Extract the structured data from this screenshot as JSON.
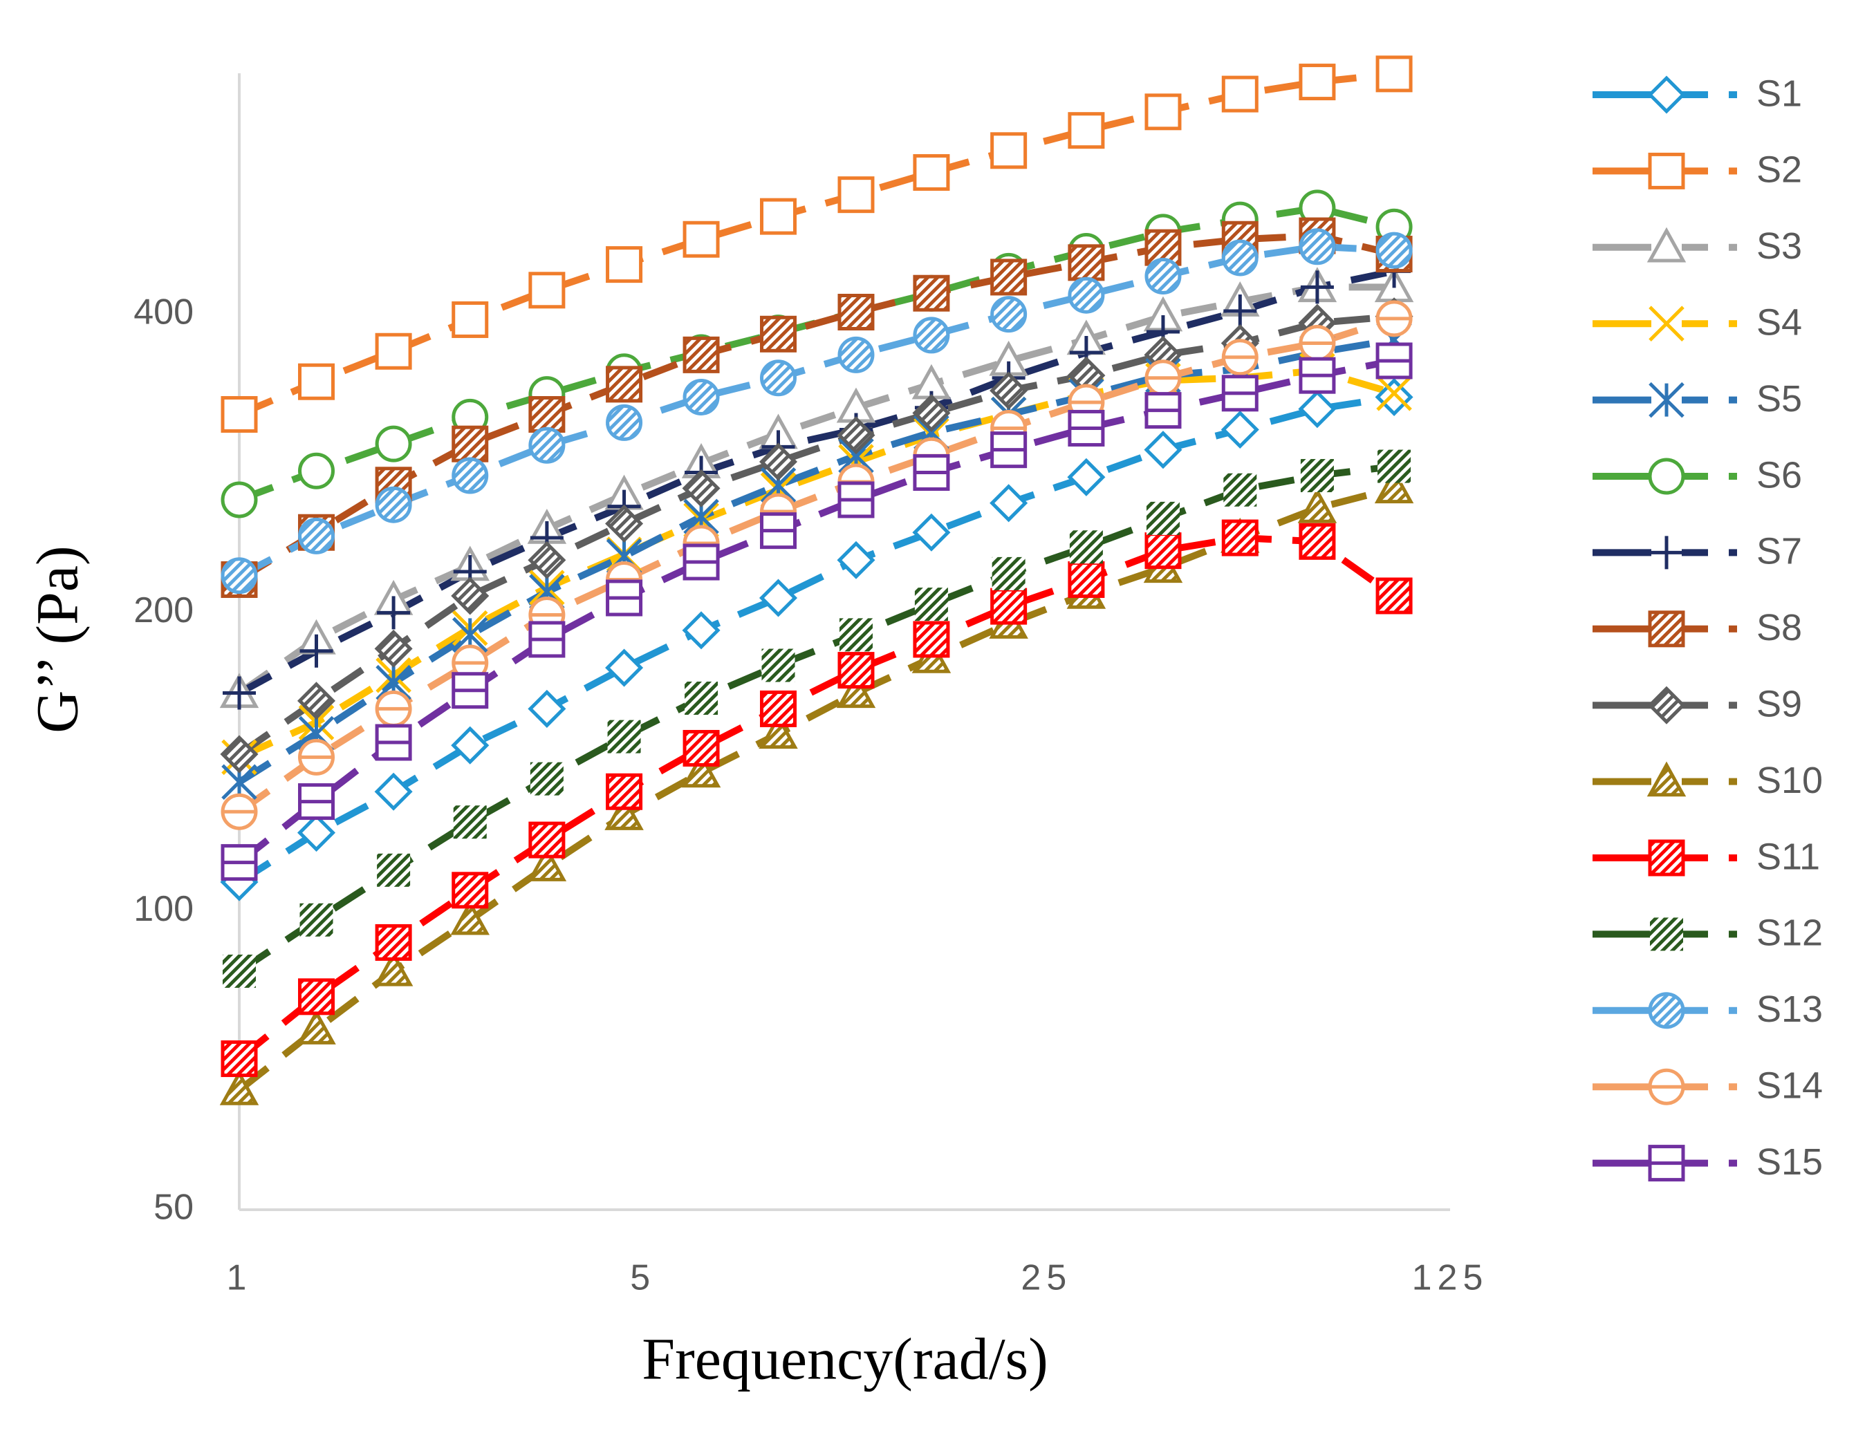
{
  "chart_data": {
    "type": "line",
    "x_label": "Frequency(rad/s)",
    "y_label": "G’’ (Pa)",
    "x_scale": "log",
    "y_scale": "log",
    "xlim": [
      1,
      125
    ],
    "ylim": [
      50,
      700
    ],
    "xticks": [
      1,
      5,
      25,
      125
    ],
    "yticks": [
      50,
      100,
      200,
      400
    ],
    "grid": false,
    "legend": "right",
    "x": [
      1,
      1.36,
      1.85,
      2.51,
      3.41,
      4.64,
      6.31,
      8.58,
      11.7,
      15.8,
      21.5,
      29.3,
      39.8,
      54.1,
      73.6,
      100
    ],
    "series": [
      {
        "name": "S1",
        "color": "#2196d3",
        "marker": "diamond",
        "values": [
          107,
          120,
          132,
          147,
          160,
          176,
          192,
          207,
          226,
          241,
          258,
          274,
          292,
          306,
          321,
          330
        ]
      },
      {
        "name": "S2",
        "color": "#f07d2b",
        "marker": "square",
        "values": [
          317,
          342,
          367,
          395,
          423,
          449,
          476,
          502,
          528,
          556,
          585,
          613,
          640,
          667,
          686,
          699
        ]
      },
      {
        "name": "S3",
        "color": "#a5a5a5",
        "marker": "triangle",
        "values": [
          166,
          188,
          206,
          223,
          243,
          263,
          283,
          303,
          322,
          340,
          359,
          377,
          398,
          412,
          426,
          426
        ]
      },
      {
        "name": "S4",
        "color": "#ffc000",
        "marker": "x",
        "values": [
          143,
          155,
          173,
          193,
          212,
          229,
          248,
          266,
          284,
          302,
          317,
          332,
          343,
          345,
          351,
          333
        ]
      },
      {
        "name": "S5",
        "color": "#2e75b6",
        "marker": "asterisk",
        "values": [
          135,
          151,
          170,
          190,
          210,
          228,
          250,
          269,
          288,
          304,
          317,
          331,
          347,
          352,
          366,
          377
        ]
      },
      {
        "name": "S6",
        "color": "#4ca83b",
        "marker": "circle",
        "values": [
          260,
          278,
          296,
          315,
          332,
          350,
          366,
          383,
          402,
          420,
          442,
          463,
          484,
          498,
          512,
          490
        ]
      },
      {
        "name": "S7",
        "color": "#1f2d63",
        "marker": "plus",
        "values": [
          166,
          183,
          200,
          220,
          238,
          256,
          277,
          294,
          306,
          322,
          345,
          366,
          384,
          403,
          426,
          442
        ]
      },
      {
        "name": "S8",
        "color": "#b5501c",
        "marker": "hatched-square",
        "values": [
          216,
          241,
          269,
          296,
          317,
          340,
          364,
          382,
          402,
          420,
          436,
          451,
          467,
          476,
          480,
          460
        ]
      },
      {
        "name": "S9",
        "color": "#5e5e5e",
        "marker": "hatched-diamond",
        "values": [
          144,
          163,
          184,
          208,
          226,
          246,
          267,
          284,
          302,
          318,
          335,
          347,
          364,
          374,
          392,
          398
        ]
      },
      {
        "name": "S10",
        "color": "#9e7c14",
        "marker": "hatched-triangle",
        "values": [
          66,
          76,
          87,
          98,
          111,
          125,
          138,
          151,
          166,
          180,
          195,
          209,
          222,
          238,
          255,
          267
        ]
      },
      {
        "name": "S11",
        "color": "#ff0000",
        "marker": "hatched-square",
        "values": [
          71,
          82,
          93,
          105,
          118,
          132,
          146,
          160,
          175,
          188,
          203,
          216,
          231,
          238,
          236,
          208
        ]
      },
      {
        "name": "S12",
        "color": "#2a5a1e",
        "marker": "hatched",
        "values": [
          87,
          98,
          110,
          123,
          136,
          150,
          164,
          177,
          190,
          204,
          219,
          233,
          249,
          266,
          275,
          281
        ]
      },
      {
        "name": "S13",
        "color": "#5ba7e0",
        "marker": "hatched-circle",
        "values": [
          218,
          239,
          257,
          275,
          295,
          311,
          330,
          345,
          364,
          381,
          400,
          418,
          437,
          456,
          468,
          464
        ]
      },
      {
        "name": "S14",
        "color": "#f4a066",
        "marker": "circle-minus",
        "values": [
          126,
          143,
          160,
          178,
          199,
          216,
          235,
          253,
          271,
          288,
          307,
          326,
          345,
          362,
          374,
          396
        ]
      },
      {
        "name": "S15",
        "color": "#7030a0",
        "marker": "square-minus",
        "values": [
          112,
          129,
          148,
          167,
          188,
          207,
          225,
          242,
          260,
          277,
          292,
          307,
          320,
          333,
          347,
          359
        ]
      }
    ]
  }
}
